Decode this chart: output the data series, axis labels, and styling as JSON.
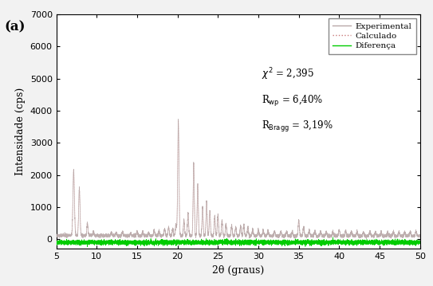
{
  "xlabel": "2θ (graus)",
  "ylabel": "Intensidade (cps)",
  "xlim": [
    5,
    50
  ],
  "ylim": [
    -300,
    7000
  ],
  "yticks": [
    0,
    1000,
    2000,
    3000,
    4000,
    5000,
    6000,
    7000
  ],
  "xticks": [
    5,
    10,
    15,
    20,
    25,
    30,
    35,
    40,
    45,
    50
  ],
  "legend_entries": [
    "Experimental",
    "Calculado",
    "Diferença"
  ],
  "line_color_exp": "#b8a8a8",
  "line_color_calc": "#c87878",
  "line_color_diff": "#00cc00",
  "background_color": "#f2f2f2",
  "plot_bg_color": "#ffffff",
  "panel_label": "(a)",
  "stats": [
    "χ² = 2,395",
    "R$_{\\mathrm{wp}}$ = 6,40%",
    "R$_{\\mathrm{Bragg}}$ = 3,19%"
  ]
}
